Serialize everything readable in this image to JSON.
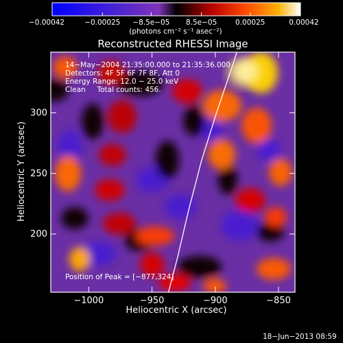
{
  "chart_data": {
    "type": "heatmap",
    "title": "Reconstructed RHESSI Image",
    "xlabel": "Heliocentric X (arcsec)",
    "ylabel": "Heliocentric Y (arcsec)",
    "xlim": [
      -1030,
      -837
    ],
    "ylim": [
      152,
      350
    ],
    "x_ticks": [
      -1000,
      -950,
      -900,
      -850
    ],
    "x_tick_labels": [
      "−1000",
      "−950",
      "−900",
      "−850"
    ],
    "y_ticks": [
      200,
      250,
      300
    ],
    "y_tick_labels": [
      "200",
      "250",
      "300"
    ],
    "colorbar": {
      "range": [
        -0.00042,
        0.00042
      ],
      "ticks": [
        -0.00042,
        -0.00025,
        -8.5e-05,
        8.5e-05,
        0.00025,
        0.00042
      ],
      "tick_labels": [
        "−0.00042",
        "−0.00025",
        "−8.5e−05",
        "8.5e−05",
        "0.00025",
        "0.00042"
      ],
      "units_label": "(photons cm⁻² s⁻¹ asec⁻²)"
    },
    "annotations": [
      "14−May−2004 21:35:00.000 to 21:35:36.000",
      "Detectors: 4F 5F 6F 7F 8F, Att 0",
      "Energy Range: 12.0 − 25.0 keV",
      "Clean     Total counts: 456."
    ],
    "peak_label": "Position of Peak = [−877,324]",
    "peak": [
      -877,
      324
    ],
    "limb_curve": [
      [
        -937,
        152
      ],
      [
        -930,
        180
      ],
      [
        -921,
        220
      ],
      [
        -911,
        260
      ],
      [
        -899,
        300
      ],
      [
        -886,
        340
      ],
      [
        -883,
        350
      ]
    ],
    "grid": false
  },
  "footer": {
    "date": "18−Jun−2013 08:59"
  }
}
